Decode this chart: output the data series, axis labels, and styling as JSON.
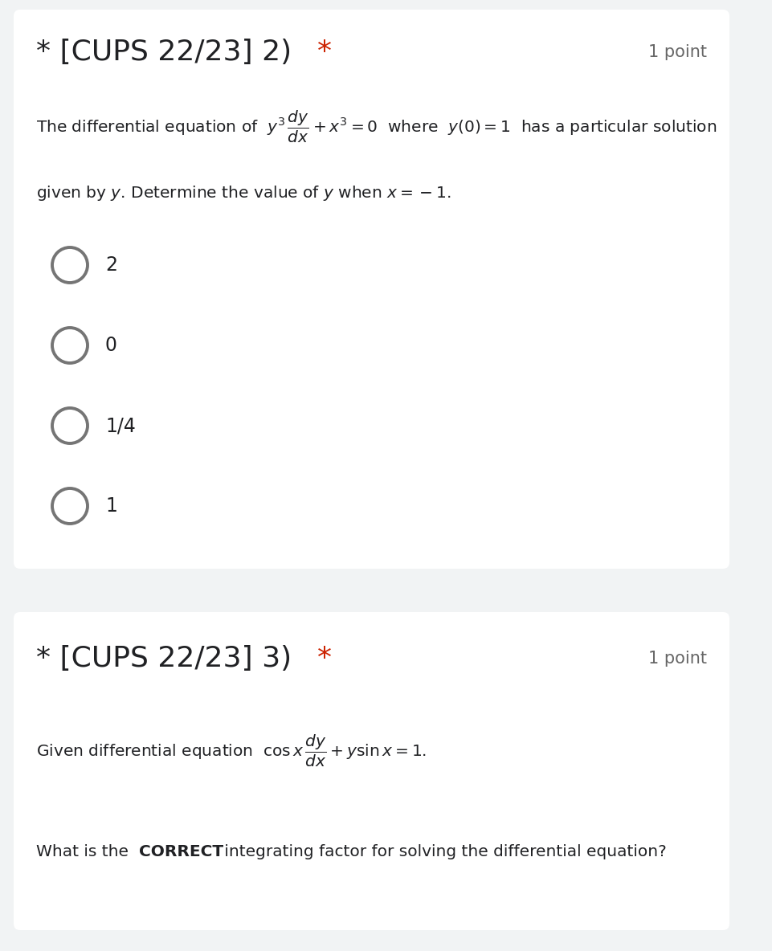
{
  "bg_color": "#ffffff",
  "bg_color_gray": "#f1f3f4",
  "text_color": "#202124",
  "red_color": "#cc2200",
  "gray_color": "#666666",
  "circle_color": "#757575",
  "title1_black": "* [CUPS 22/23] 2) ",
  "title1_red": "*",
  "title2_black": "* [CUPS 22/23] 3) ",
  "title2_red": "*",
  "points": "1 point",
  "choices": [
    "2",
    "0",
    "1/4",
    "1"
  ],
  "title_fontsize": 26,
  "body_fontsize": 14.5,
  "points_fontsize": 15,
  "choice_fontsize": 17,
  "fig_width": 9.61,
  "fig_height": 11.84,
  "dpi": 100
}
